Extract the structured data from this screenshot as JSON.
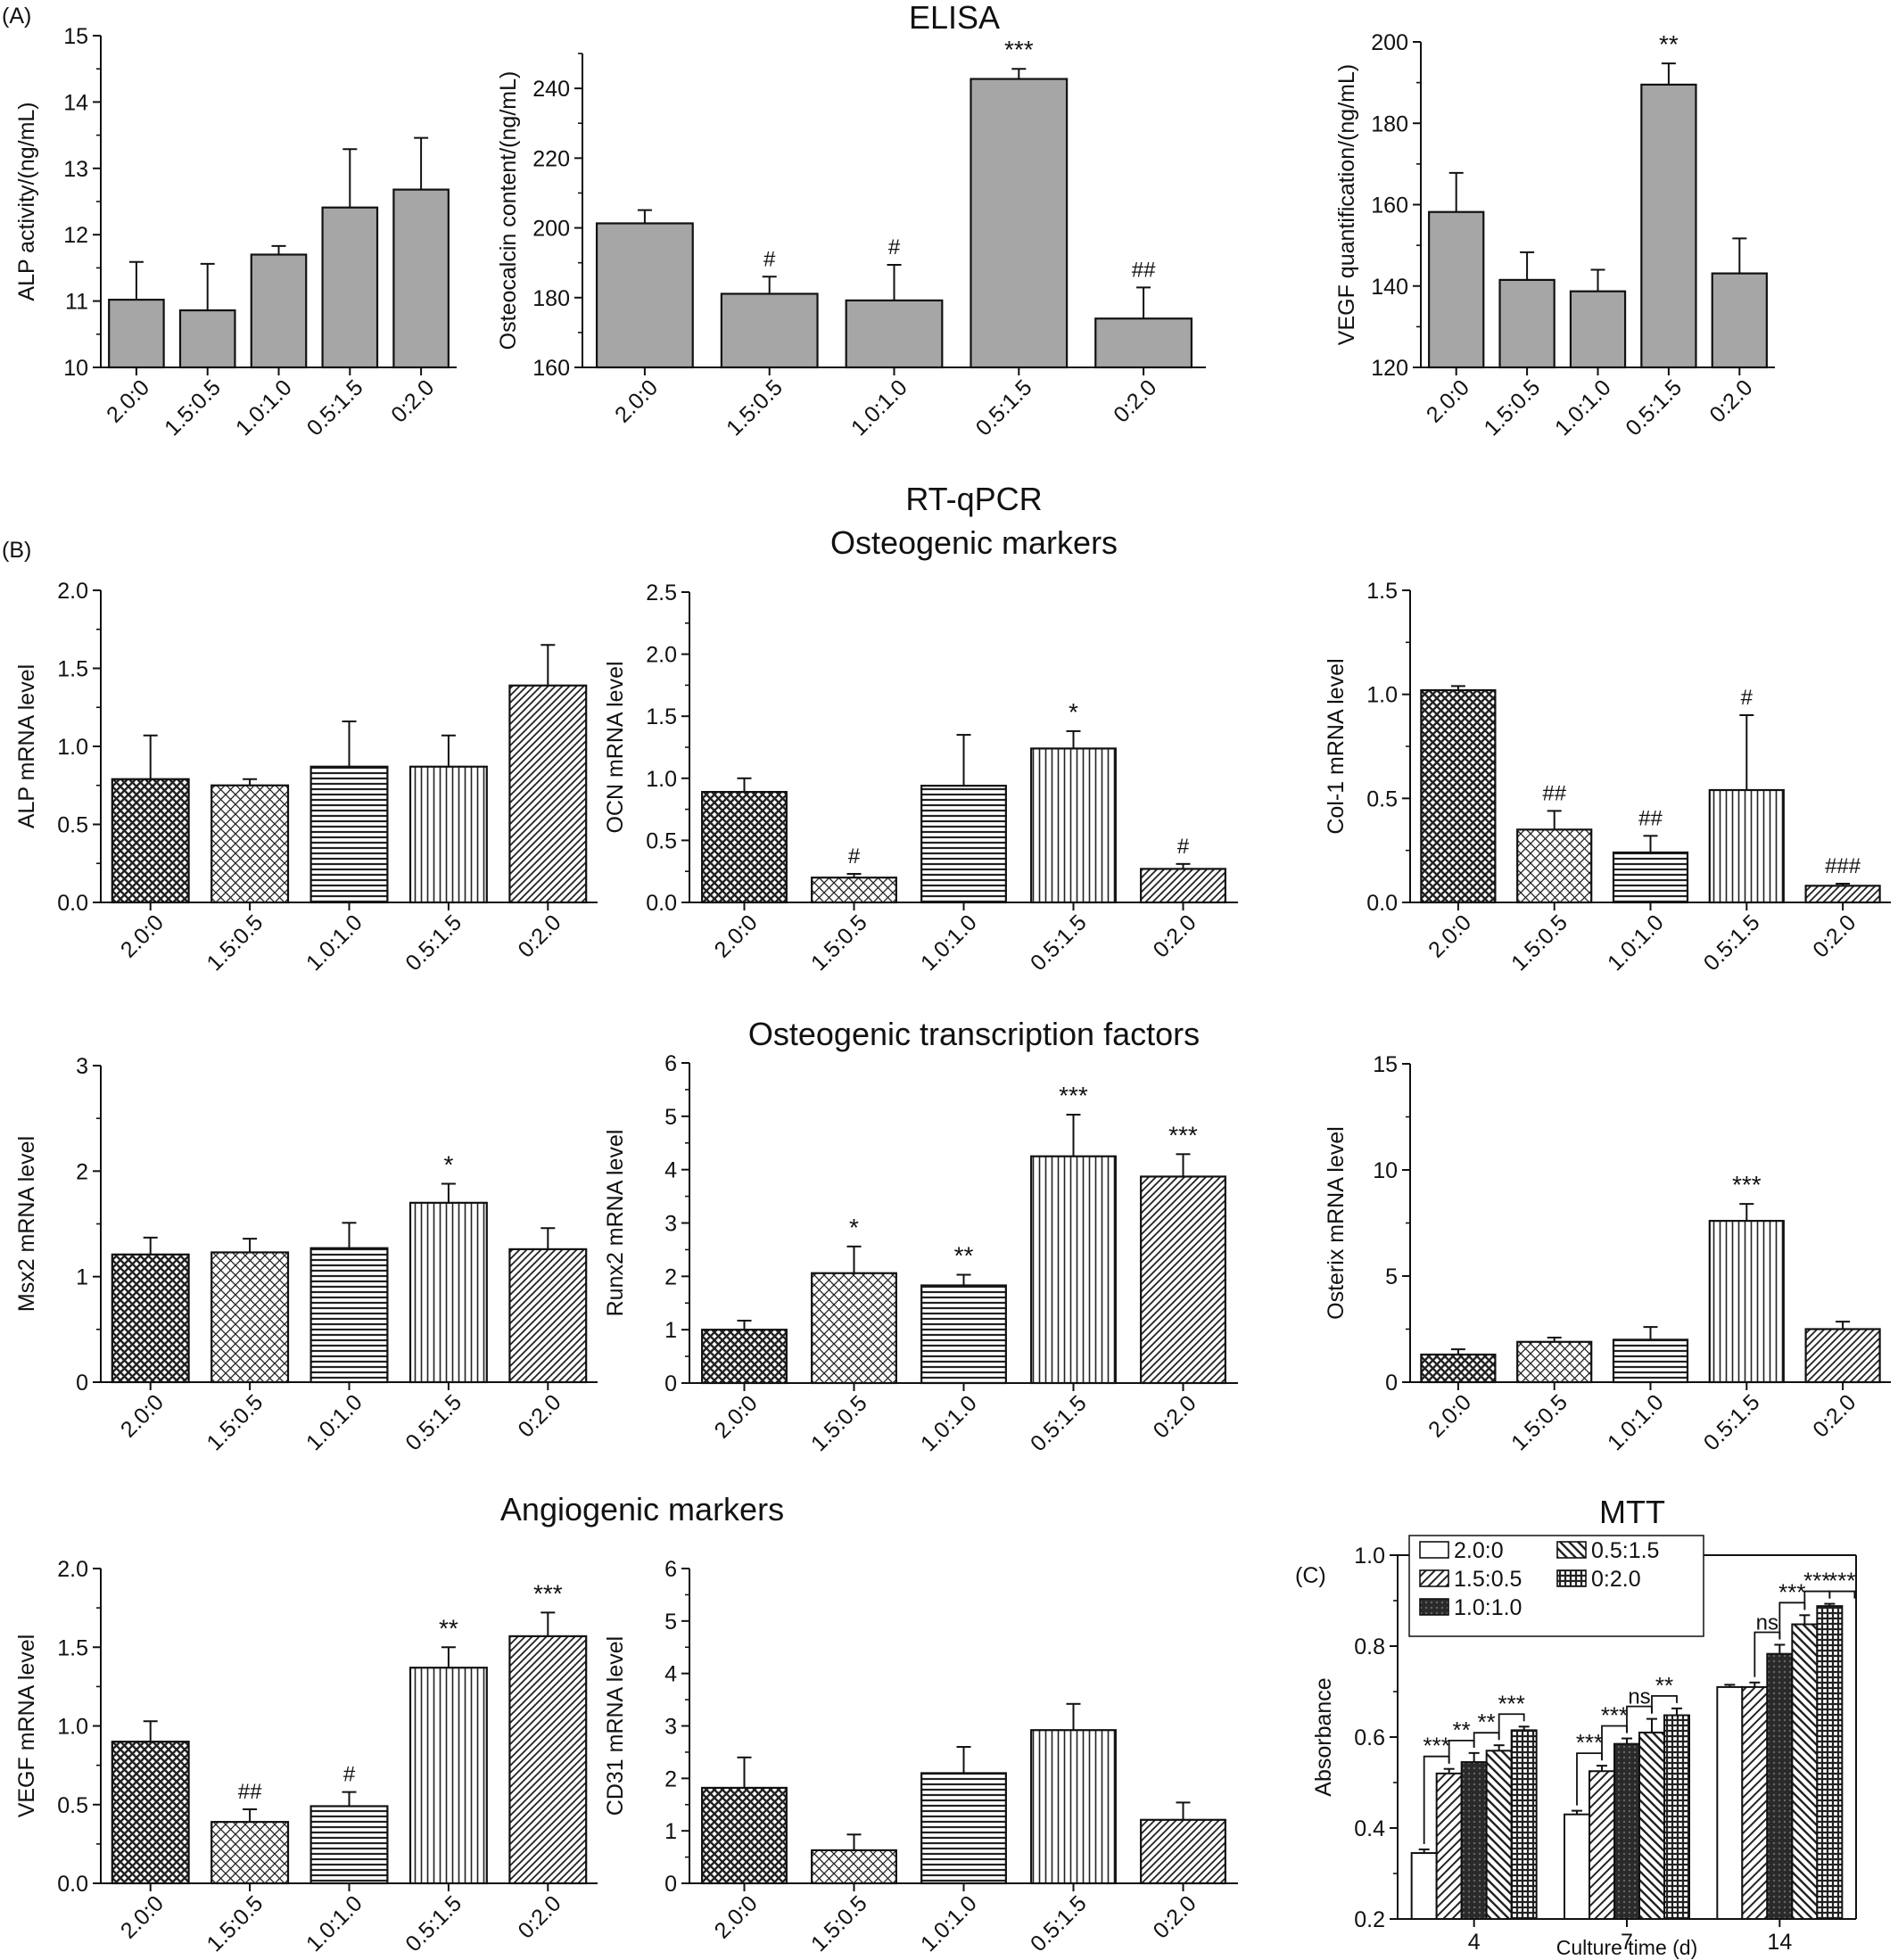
{
  "section_labels": {
    "a": "(A)",
    "b": "(B)",
    "c": "(C)"
  },
  "headings": {
    "elisa": "ELISA",
    "rtqpcr": "RT-qPCR",
    "osteogenic_markers": "Osteogenic markers",
    "osteogenic_tf": "Osteogenic transcription factors",
    "angiogenic_markers": "Angiogenic markers",
    "mtt": "MTT"
  },
  "colors": {
    "elisa_bar": "#a6a6a6",
    "axis": "#111111",
    "bar_stroke": "#111111"
  },
  "chart_data": [
    {
      "id": "alp_activity",
      "type": "bar",
      "style": "gray",
      "categories": [
        "2.0:0",
        "1.5:0.5",
        "1.0:1.0",
        "0.5:1.5",
        "0:2.0"
      ],
      "values": [
        11.02,
        10.86,
        11.7,
        12.41,
        12.68
      ],
      "errors": [
        0.57,
        0.7,
        0.13,
        0.88,
        0.78
      ],
      "annotations": [
        "",
        "",
        "",
        "",
        ""
      ],
      "ylabel": "ALP activity/(ng/mL)",
      "ylim": [
        10,
        15
      ],
      "yticks": [
        10,
        11,
        12,
        13,
        14,
        15
      ],
      "minor": 2,
      "tickDecimals": 0
    },
    {
      "id": "osteocalcin",
      "type": "bar",
      "style": "gray",
      "categories": [
        "2.0:0",
        "1.5:0.5",
        "1.0:1.0",
        "0.5:1.5",
        "0:2.0"
      ],
      "values": [
        201.3,
        181.1,
        179.2,
        242.7,
        174
      ],
      "errors": [
        3.8,
        4.9,
        10.2,
        2.9,
        8.9
      ],
      "annotations": [
        "",
        "#",
        "#",
        "***",
        "##"
      ],
      "ylabel": "Osteocalcin content/(ng/mL)",
      "ylim": [
        160,
        250
      ],
      "yticks": [
        160,
        180,
        200,
        220,
        240
      ],
      "minor": 2,
      "tickDecimals": 0
    },
    {
      "id": "vegf_quant",
      "type": "bar",
      "style": "gray",
      "categories": [
        "2.0:0",
        "1.5:0.5",
        "1.0:1.0",
        "0.5:1.5",
        "0:2.0"
      ],
      "values": [
        158.2,
        141.5,
        138.7,
        189.5,
        143.1
      ],
      "errors": [
        9.6,
        6.8,
        5.3,
        5.2,
        8.6
      ],
      "annotations": [
        "",
        "",
        "",
        "**",
        ""
      ],
      "ylabel": "VEGF quantification/(ng/mL)",
      "ylim": [
        120,
        200
      ],
      "yticks": [
        120,
        140,
        160,
        180,
        200
      ],
      "minor": 2,
      "tickDecimals": 0
    },
    {
      "id": "alp_mrna",
      "type": "bar",
      "style": "pattern",
      "categories": [
        "2.0:0",
        "1.5:0.5",
        "1.0:1.0",
        "0.5:1.5",
        "0:2.0"
      ],
      "values": [
        0.79,
        0.75,
        0.87,
        0.87,
        1.39
      ],
      "errors": [
        0.28,
        0.04,
        0.29,
        0.2,
        0.26
      ],
      "annotations": [
        "",
        "",
        "",
        "",
        ""
      ],
      "ylabel": "ALP mRNA level",
      "ylim": [
        0,
        2.0
      ],
      "yticks": [
        0,
        0.5,
        1.0,
        1.5,
        2.0
      ],
      "minor": 2,
      "tickDecimals": 1
    },
    {
      "id": "ocn_mrna",
      "type": "bar",
      "style": "pattern",
      "categories": [
        "2.0:0",
        "1.5:0.5",
        "1.0:1.0",
        "0.5:1.5",
        "0:2.0"
      ],
      "values": [
        0.89,
        0.2,
        0.94,
        1.24,
        0.27
      ],
      "errors": [
        0.11,
        0.03,
        0.41,
        0.14,
        0.04
      ],
      "annotations": [
        "",
        "#",
        "",
        "*",
        "#"
      ],
      "ylabel": "OCN mRNA level",
      "ylim": [
        0,
        2.5
      ],
      "yticks": [
        0,
        0.5,
        1.0,
        1.5,
        2.0,
        2.5
      ],
      "minor": 2,
      "tickDecimals": 1
    },
    {
      "id": "col1_mrna",
      "type": "bar",
      "style": "pattern",
      "categories": [
        "2.0:0",
        "1.5:0.5",
        "1.0:1.0",
        "0.5:1.5",
        "0:2.0"
      ],
      "values": [
        1.02,
        0.35,
        0.24,
        0.54,
        0.08
      ],
      "errors": [
        0.02,
        0.09,
        0.08,
        0.36,
        0.01
      ],
      "annotations": [
        "",
        "##",
        "##",
        "#",
        "###"
      ],
      "ylabel": "Col-1 mRNA level",
      "ylim": [
        0,
        1.5
      ],
      "yticks": [
        0,
        0.5,
        1.0,
        1.5
      ],
      "minor": 2,
      "tickDecimals": 1
    },
    {
      "id": "msx2_mrna",
      "type": "bar",
      "style": "pattern",
      "categories": [
        "2.0:0",
        "1.5:0.5",
        "1.0:1.0",
        "0.5:1.5",
        "0:2.0"
      ],
      "values": [
        1.21,
        1.23,
        1.27,
        1.7,
        1.26
      ],
      "errors": [
        0.16,
        0.13,
        0.24,
        0.18,
        0.2
      ],
      "annotations": [
        "",
        "",
        "",
        "*",
        ""
      ],
      "ylabel": "Msx2 mRNA level",
      "ylim": [
        0,
        3
      ],
      "yticks": [
        0,
        1,
        2,
        3
      ],
      "minor": 2,
      "tickDecimals": 0
    },
    {
      "id": "runx2_mrna",
      "type": "bar",
      "style": "pattern",
      "categories": [
        "2.0:0",
        "1.5:0.5",
        "1.0:1.0",
        "0.5:1.5",
        "0:2.0"
      ],
      "values": [
        1.0,
        2.06,
        1.83,
        4.25,
        3.87
      ],
      "errors": [
        0.17,
        0.5,
        0.2,
        0.78,
        0.42
      ],
      "annotations": [
        "",
        "*",
        "**",
        "***",
        "***"
      ],
      "ylabel": "Runx2 mRNA level",
      "ylim": [
        0,
        6
      ],
      "yticks": [
        0,
        1,
        2,
        3,
        4,
        5,
        6
      ],
      "minor": 2,
      "tickDecimals": 0
    },
    {
      "id": "osterix_mrna",
      "type": "bar",
      "style": "pattern",
      "categories": [
        "2.0:0",
        "1.5:0.5",
        "1.0:1.0",
        "0.5:1.5",
        "0:2.0"
      ],
      "values": [
        1.3,
        1.9,
        2.0,
        7.6,
        2.5
      ],
      "errors": [
        0.25,
        0.2,
        0.6,
        0.8,
        0.35
      ],
      "annotations": [
        "",
        "",
        "",
        "***",
        ""
      ],
      "ylabel": "Osterix mRNA level",
      "ylim": [
        0,
        15
      ],
      "yticks": [
        0,
        5,
        10,
        15
      ],
      "minor": 2,
      "tickDecimals": 0
    },
    {
      "id": "vegf_mrna",
      "type": "bar",
      "style": "pattern",
      "categories": [
        "2.0:0",
        "1.5:0.5",
        "1.0:1.0",
        "0.5:1.5",
        "0:2.0"
      ],
      "values": [
        0.9,
        0.39,
        0.49,
        1.37,
        1.57
      ],
      "errors": [
        0.13,
        0.08,
        0.09,
        0.13,
        0.15
      ],
      "annotations": [
        "",
        "##",
        "#",
        "**",
        "***"
      ],
      "ylabel": "VEGF mRNA level",
      "ylim": [
        0,
        2.0
      ],
      "yticks": [
        0,
        0.5,
        1.0,
        1.5,
        2.0
      ],
      "minor": 2,
      "tickDecimals": 1
    },
    {
      "id": "cd31_mrna",
      "type": "bar",
      "style": "pattern",
      "categories": [
        "2.0:0",
        "1.5:0.5",
        "1.0:1.0",
        "0.5:1.5",
        "0:2.0"
      ],
      "values": [
        1.82,
        0.63,
        2.1,
        2.92,
        1.21
      ],
      "errors": [
        0.58,
        0.3,
        0.5,
        0.5,
        0.33
      ],
      "annotations": [
        "",
        "",
        "",
        "",
        ""
      ],
      "ylabel": "CD31 mRNA level",
      "ylim": [
        0,
        6
      ],
      "yticks": [
        0,
        1,
        2,
        3,
        4,
        5,
        6
      ],
      "minor": 2,
      "tickDecimals": 0
    },
    {
      "id": "mtt",
      "type": "bar",
      "categories": [
        "4",
        "7",
        "14"
      ],
      "series": [
        {
          "name": "2.0:0",
          "pattern": "white",
          "values": [
            0.345,
            0.43,
            0.71
          ],
          "errors": [
            0.008,
            0.008,
            0.005
          ]
        },
        {
          "name": "1.5:0.5",
          "pattern": "diag-right",
          "values": [
            0.52,
            0.525,
            0.71
          ],
          "errors": [
            0.01,
            0.012,
            0.01
          ]
        },
        {
          "name": "1.0:1.0",
          "pattern": "dark",
          "values": [
            0.545,
            0.585,
            0.783
          ],
          "errors": [
            0.02,
            0.012,
            0.02
          ]
        },
        {
          "name": "0.5:1.5",
          "pattern": "diag-left",
          "values": [
            0.57,
            0.61,
            0.848
          ],
          "errors": [
            0.012,
            0.03,
            0.02
          ]
        },
        {
          "name": "0:2.0",
          "pattern": "grid",
          "values": [
            0.615,
            0.648,
            0.888
          ],
          "errors": [
            0.008,
            0.015,
            0.005
          ]
        }
      ],
      "comparisons": [
        {
          "cat": 0,
          "from": 0,
          "to": 1,
          "label": "***"
        },
        {
          "cat": 0,
          "from": 1,
          "to": 2,
          "label": "**"
        },
        {
          "cat": 0,
          "from": 2,
          "to": 3,
          "label": "**"
        },
        {
          "cat": 0,
          "from": 3,
          "to": 4,
          "label": "***"
        },
        {
          "cat": 1,
          "from": 0,
          "to": 1,
          "label": "***"
        },
        {
          "cat": 1,
          "from": 1,
          "to": 2,
          "label": "***"
        },
        {
          "cat": 1,
          "from": 2,
          "to": 3,
          "label": "ns"
        },
        {
          "cat": 1,
          "from": 3,
          "to": 4,
          "label": "**"
        },
        {
          "cat": 2,
          "from": 1,
          "to": 2,
          "label": "ns"
        },
        {
          "cat": 2,
          "from": 2,
          "to": 3,
          "label": "***"
        },
        {
          "cat": 2,
          "from": 3,
          "to": 4,
          "label": "***"
        },
        {
          "cat": 2,
          "from": 4,
          "to": 5,
          "label": "***"
        }
      ],
      "xlabel": "Culture time (d)",
      "ylabel": "Absorbance",
      "ylim": [
        0.2,
        1.0
      ],
      "yticks": [
        0.2,
        0.4,
        0.6,
        0.8,
        1.0
      ],
      "minor": 2,
      "tickDecimals": 1,
      "legend": "top-left"
    }
  ]
}
